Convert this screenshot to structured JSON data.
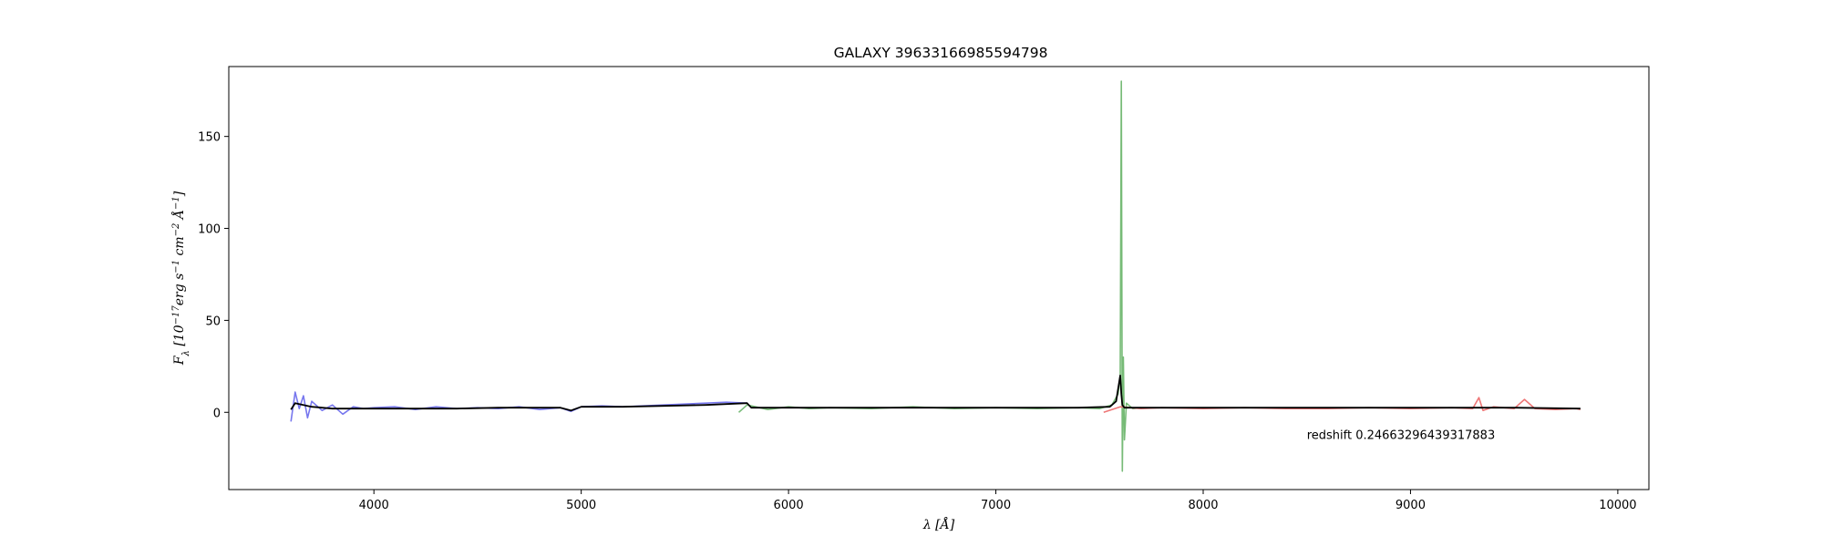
{
  "chart_data": {
    "type": "line",
    "title": "GALAXY 39633166985594798",
    "xlabel": "λ [Å]",
    "ylabel": "F_λ [10^-17 erg s^-1 cm^-2 Å^-1]",
    "ylabel_parts": {
      "sym": "F",
      "sub": "λ",
      "pre": " [10",
      "exp1": "−17",
      "mid1": "erg s",
      "exp2": "−1",
      "mid2": " cm",
      "exp3": "−2",
      "mid3": " Å",
      "exp4": "−1",
      "post": "]"
    },
    "xlim": [
      3300,
      10150
    ],
    "ylim": [
      -42,
      188
    ],
    "xticks": [
      4000,
      5000,
      6000,
      7000,
      8000,
      9000,
      10000
    ],
    "yticks": [
      0,
      50,
      100,
      150
    ],
    "grid": false,
    "annotation": {
      "text": "redshift 0.24663296439317883",
      "x": 8500,
      "y": -12
    },
    "colors": {
      "b": "#7777ee",
      "r": "#77bb77",
      "z": "#ee7777",
      "model": "#000000"
    },
    "series": [
      {
        "arm": "b",
        "x": [
          3600,
          3620,
          3640,
          3660,
          3680,
          3700,
          3750,
          3800,
          3850,
          3900,
          3950,
          4000,
          4100,
          4200,
          4300,
          4400,
          4500,
          4600,
          4700,
          4800,
          4900,
          4950,
          5000,
          5100,
          5200,
          5300,
          5400,
          5500,
          5600,
          5700,
          5800
        ],
        "y": [
          -5,
          11,
          2,
          9,
          -3,
          6,
          1,
          4,
          -1,
          3,
          2,
          2.5,
          3,
          1.5,
          3,
          2,
          2.5,
          2,
          3,
          1.5,
          2.5,
          0.5,
          3,
          3.5,
          3,
          3.5,
          4,
          4.5,
          5,
          5.5,
          5
        ]
      },
      {
        "arm": "r",
        "x": [
          5760,
          5800,
          5900,
          6000,
          6100,
          6200,
          6400,
          6600,
          6800,
          7000,
          7200,
          7400,
          7500,
          7560,
          7590,
          7600,
          7605,
          7610,
          7615,
          7620,
          7630,
          7660,
          7700
        ],
        "y": [
          0,
          4,
          1.5,
          3,
          2,
          2.5,
          2,
          3,
          2,
          2.5,
          2,
          2.5,
          2,
          4,
          10,
          20,
          180,
          -32,
          30,
          -15,
          5,
          2,
          2.5
        ]
      },
      {
        "arm": "z",
        "x": [
          7520,
          7600,
          7700,
          7800,
          8000,
          8200,
          8400,
          8600,
          8800,
          9000,
          9200,
          9300,
          9330,
          9350,
          9400,
          9500,
          9550,
          9600,
          9700,
          9800,
          9820
        ],
        "y": [
          0,
          3,
          2,
          2.5,
          2,
          2.5,
          2,
          2,
          2.5,
          2,
          2.5,
          2,
          8,
          1,
          3,
          2,
          7,
          2,
          1.5,
          2,
          1.5
        ]
      }
    ],
    "model": {
      "x": [
        3600,
        3620,
        3700,
        3800,
        4000,
        4200,
        4400,
        4600,
        4800,
        4900,
        4950,
        5000,
        5200,
        5400,
        5600,
        5800,
        5820,
        5900,
        6200,
        6600,
        7000,
        7400,
        7550,
        7580,
        7600,
        7605,
        7610,
        7620,
        7700,
        8000,
        8500,
        9000,
        9500,
        9820
      ],
      "y": [
        1.5,
        5,
        3,
        2,
        2,
        2,
        2,
        2.5,
        2.5,
        2.5,
        1,
        3,
        3,
        3.5,
        4,
        5,
        2.5,
        2.5,
        2.5,
        2.5,
        2.5,
        2.5,
        3,
        6,
        20,
        10,
        4,
        2.5,
        2.5,
        2.5,
        2.5,
        2.5,
        2.5,
        2
      ]
    }
  }
}
